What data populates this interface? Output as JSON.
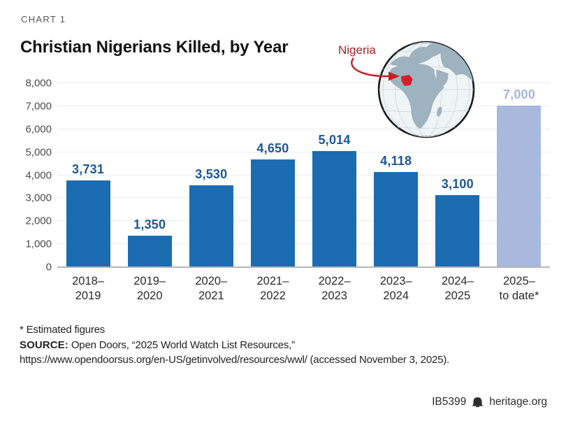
{
  "page": {
    "kicker": "CHART 1",
    "title": "Christian Nigerians Killed, by Year",
    "map_label": "Nigeria",
    "footnote": "* Estimated figures",
    "source_label": "SOURCE:",
    "source_text": " Open Doors, “2025 World Watch List Resources,”",
    "source_url_line": "https://www.opendoorsus.org/en-US/getinvolved/resources/wwl/ (accessed November 3, 2025).",
    "report_id": "IB5399",
    "site": "heritage.org"
  },
  "colors": {
    "bar": "#1b6cb0",
    "highlight_bar": "#a9b8dd",
    "value_label": "#1d5796",
    "highlight_value_label": "#a7b5da",
    "accent_red": "#a72126",
    "arrow_red": "#c32026",
    "grid": "#eaecef",
    "axis": "#b4b5b7"
  },
  "chart_data": {
    "type": "bar",
    "title": "Christian Nigerians Killed, by Year",
    "categories": [
      "2018–\n2019",
      "2019–\n2020",
      "2020–\n2021",
      "2021–\n2022",
      "2022–\n2023",
      "2023–\n2024",
      "2024–\n2025",
      "2025–\nto date*"
    ],
    "values": [
      3731,
      1350,
      3530,
      4650,
      5014,
      4118,
      3100,
      7000
    ],
    "value_labels": [
      "3,731",
      "1,350",
      "3,530",
      "4,650",
      "5,014",
      "4,118",
      "3,100",
      "7,000"
    ],
    "highlight_index": 7,
    "highlight_note": "Estimated figure, lighter bar",
    "xlabel": "",
    "ylabel": "",
    "ylim": [
      0,
      8000
    ],
    "ytick_step": 1000,
    "ytick_labels": [
      "0",
      "1,000",
      "2,000",
      "3,000",
      "4,000",
      "5,000",
      "6,000",
      "7,000",
      "8,000"
    ],
    "grid": true,
    "legend": "none"
  }
}
